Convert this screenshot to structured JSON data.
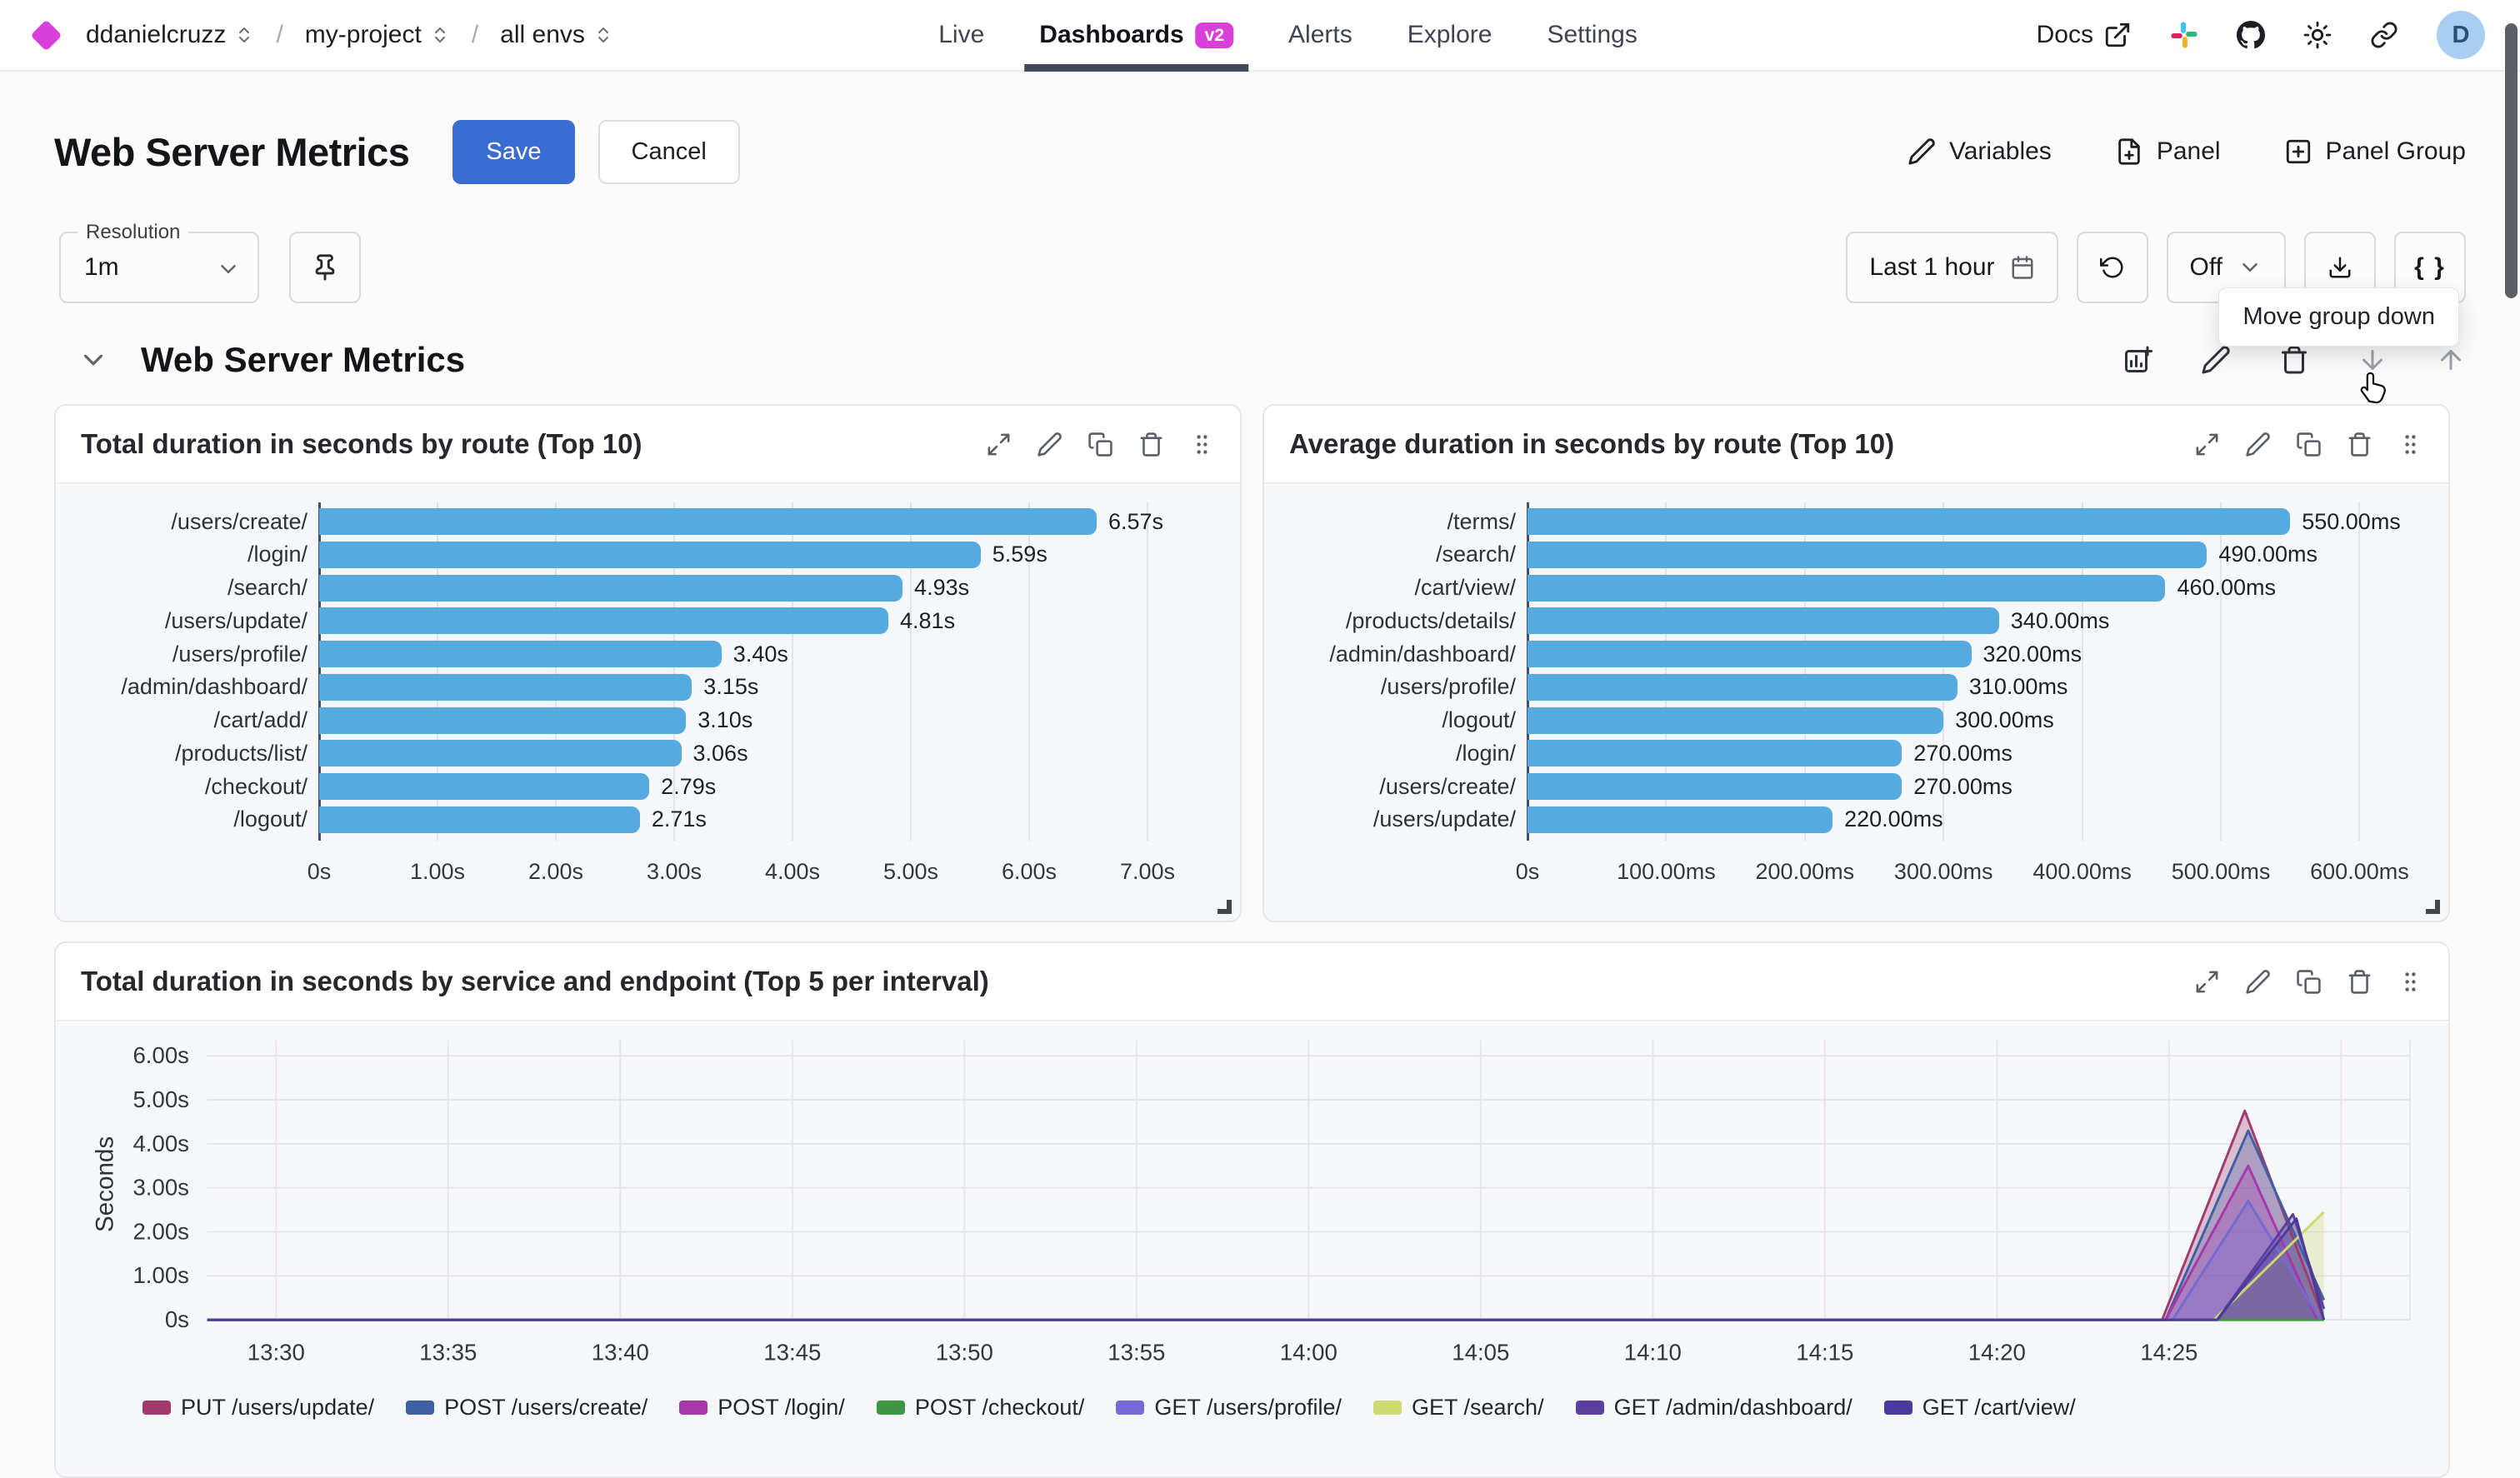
{
  "nav": {
    "breadcrumbs": [
      {
        "label": "ddanielcruzz"
      },
      {
        "label": "my-project"
      },
      {
        "label": "all envs"
      }
    ],
    "items": [
      {
        "label": "Live"
      },
      {
        "label": "Dashboards",
        "badge": "v2"
      },
      {
        "label": "Alerts"
      },
      {
        "label": "Explore"
      },
      {
        "label": "Settings"
      }
    ],
    "docs_label": "Docs",
    "avatar_initial": "D"
  },
  "header": {
    "title": "Web Server Metrics",
    "save_label": "Save",
    "cancel_label": "Cancel",
    "variables_label": "Variables",
    "panel_label": "Panel",
    "panel_group_label": "Panel Group"
  },
  "toolbar": {
    "resolution_label": "Resolution",
    "resolution_value": "1m",
    "time_range": "Last 1 hour",
    "auto_refresh": "Off",
    "braces_label": "{ }"
  },
  "tooltip": {
    "text": "Move group down"
  },
  "group": {
    "title": "Web Server Metrics"
  },
  "colors": {
    "accent_blue": "#3b6cd4",
    "badge_magenta": "#d93fd9",
    "bar_blue": "#57aadf"
  },
  "chart_data": [
    {
      "type": "bar",
      "orientation": "horizontal",
      "title": "Total duration in seconds by route (Top 10)",
      "categories": [
        "/users/create/",
        "/login/",
        "/search/",
        "/users/update/",
        "/users/profile/",
        "/admin/dashboard/",
        "/cart/add/",
        "/products/list/",
        "/checkout/",
        "/logout/"
      ],
      "values": [
        6.57,
        5.59,
        4.93,
        4.81,
        3.4,
        3.15,
        3.1,
        3.06,
        2.79,
        2.71
      ],
      "value_labels": [
        "6.57s",
        "5.59s",
        "4.93s",
        "4.81s",
        "3.40s",
        "3.15s",
        "3.10s",
        "3.06s",
        "2.79s",
        "2.71s"
      ],
      "tick_values": [
        0,
        1,
        2,
        3,
        4,
        5,
        6,
        7
      ],
      "tick_labels": [
        "0s",
        "1.00s",
        "2.00s",
        "3.00s",
        "4.00s",
        "5.00s",
        "6.00s",
        "7.00s"
      ],
      "xmax": 7.5,
      "bar_color": "#57aadf",
      "grid": true
    },
    {
      "type": "bar",
      "orientation": "horizontal",
      "title": "Average duration in seconds by route (Top 10)",
      "categories": [
        "/terms/",
        "/search/",
        "/cart/view/",
        "/products/details/",
        "/admin/dashboard/",
        "/users/profile/",
        "/logout/",
        "/login/",
        "/users/create/",
        "/users/update/"
      ],
      "values": [
        550,
        490,
        460,
        340,
        320,
        310,
        300,
        270,
        270,
        220
      ],
      "value_labels": [
        "550.00ms",
        "490.00ms",
        "460.00ms",
        "340.00ms",
        "320.00ms",
        "310.00ms",
        "300.00ms",
        "270.00ms",
        "270.00ms",
        "220.00ms"
      ],
      "tick_values": [
        0,
        100,
        200,
        300,
        400,
        500,
        600
      ],
      "tick_labels": [
        "0s",
        "100.00ms",
        "200.00ms",
        "300.00ms",
        "400.00ms",
        "500.00ms",
        "600.00ms"
      ],
      "xmax": 640,
      "bar_color": "#57aadf",
      "grid": true
    },
    {
      "type": "area",
      "title": "Total duration in seconds by service and endpoint (Top 5 per interval)",
      "ylabel": "Seconds",
      "y_tick_values": [
        0,
        1,
        2,
        3,
        4,
        5,
        6
      ],
      "y_tick_labels": [
        "0s",
        "1.00s",
        "2.00s",
        "3.00s",
        "4.00s",
        "5.00s",
        "6.00s"
      ],
      "ylim": [
        0,
        6.35
      ],
      "x_tick_minutes": [
        0,
        5,
        10,
        15,
        20,
        25,
        30,
        35,
        40,
        45,
        50,
        55
      ],
      "x_tick_labels": [
        "13:30",
        "13:35",
        "13:40",
        "13:45",
        "13:50",
        "13:55",
        "14:00",
        "14:05",
        "14:10",
        "14:15",
        "14:20",
        "14:25"
      ],
      "x_grid_extra_minutes": [
        60,
        62
      ],
      "xlim_minutes": [
        -2,
        62
      ],
      "grid": true,
      "legend_position": "bottom",
      "series": [
        {
          "name": "PUT /users/update/",
          "color": "#a13a6f",
          "points": [
            [
              -2,
              0
            ],
            [
              54.8,
              0
            ],
            [
              57.2,
              4.75
            ],
            [
              59.5,
              0
            ]
          ]
        },
        {
          "name": "POST /users/create/",
          "color": "#3d5fa3",
          "points": [
            [
              -2,
              0
            ],
            [
              54.9,
              0
            ],
            [
              57.3,
              4.3
            ],
            [
              59.5,
              0.45
            ]
          ]
        },
        {
          "name": "POST /login/",
          "color": "#a737ab",
          "points": [
            [
              -2,
              0
            ],
            [
              54.9,
              0
            ],
            [
              57.3,
              3.5
            ],
            [
              59.3,
              0
            ]
          ]
        },
        {
          "name": "POST /checkout/",
          "color": "#3d9641",
          "points": [
            [
              -2,
              0
            ],
            [
              59.5,
              0
            ]
          ]
        },
        {
          "name": "GET /users/profile/",
          "color": "#7569d6",
          "points": [
            [
              -2,
              0
            ],
            [
              55.1,
              0
            ],
            [
              57.3,
              2.7
            ],
            [
              59.4,
              0
            ]
          ]
        },
        {
          "name": "GET /search/",
          "color": "#ccda70",
          "points": [
            [
              -2,
              0
            ],
            [
              56.3,
              0
            ],
            [
              59.5,
              2.45
            ]
          ]
        },
        {
          "name": "GET /admin/dashboard/",
          "color": "#5b3fa0",
          "points": [
            [
              -2,
              0
            ],
            [
              56.4,
              0
            ],
            [
              58.6,
              2.4
            ],
            [
              59.5,
              0.25
            ]
          ]
        },
        {
          "name": "GET /cart/view/",
          "color": "#4a3a9c",
          "points": [
            [
              -2,
              0
            ],
            [
              56.4,
              0
            ],
            [
              58.7,
              2.3
            ],
            [
              59.5,
              0
            ]
          ]
        }
      ]
    }
  ]
}
